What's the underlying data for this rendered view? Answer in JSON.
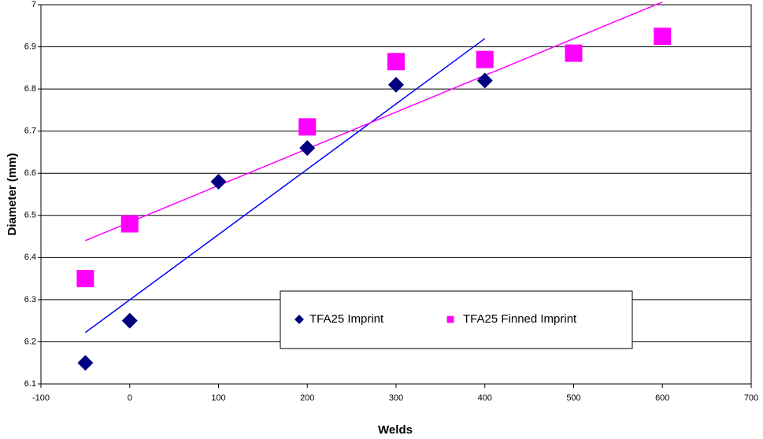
{
  "chart_data": {
    "type": "scatter",
    "x_label": "Welds",
    "y_label": "Diameter (mm)",
    "xlim": [
      -100,
      700
    ],
    "xticks": [
      -100,
      0,
      100,
      200,
      300,
      400,
      500,
      600,
      700
    ],
    "ylim": [
      6.1,
      7
    ],
    "yticks": [
      6.1,
      6.2,
      6.3,
      6.4,
      6.5,
      6.6,
      6.7,
      6.8,
      6.9,
      7
    ],
    "grid": true,
    "trendline": true,
    "series": [
      {
        "name": "TFA25 Imprint",
        "color": "#000080",
        "marker": "diamond",
        "x": [
          -50,
          0,
          100,
          200,
          300,
          400
        ],
        "values": [
          6.15,
          6.25,
          6.58,
          6.66,
          6.81,
          6.82
        ],
        "trend_color": "#0000ff"
      },
      {
        "name": "TFA25 Finned Imprint",
        "color": "#ff00ff",
        "marker": "square",
        "x": [
          -50,
          0,
          200,
          300,
          400,
          500,
          600
        ],
        "values": [
          6.35,
          6.48,
          6.71,
          6.865,
          6.87,
          6.885,
          6.925
        ],
        "trend_color": "#ff00ff"
      }
    ]
  }
}
